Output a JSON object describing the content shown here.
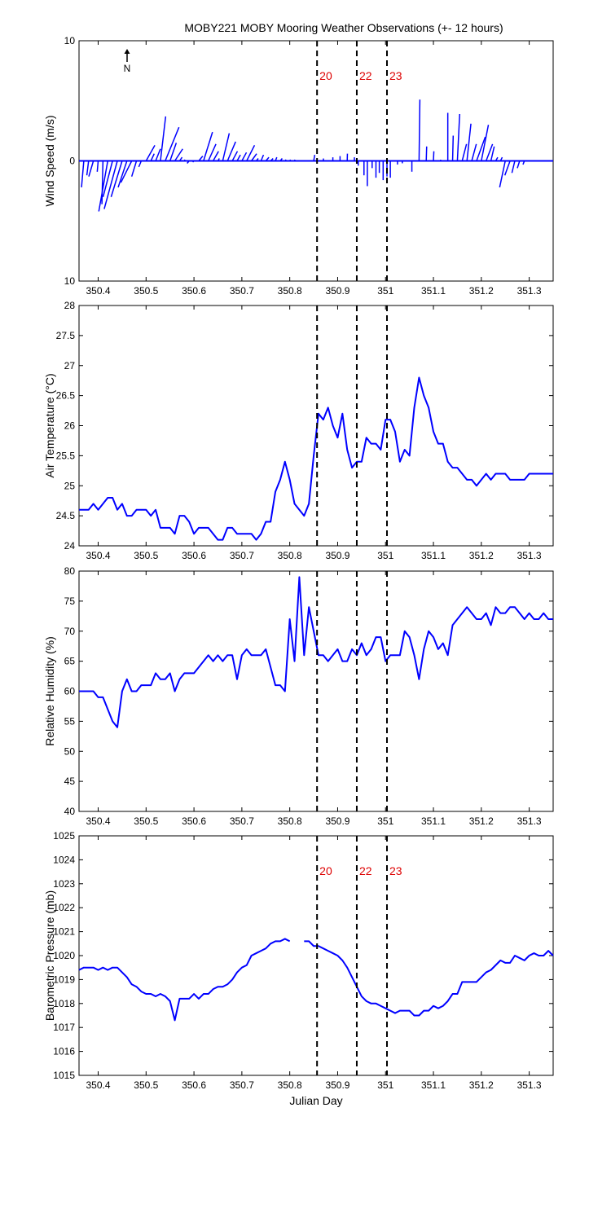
{
  "title": "MOBY221 MOBY Mooring Weather Observations (+- 12 hours)",
  "colors": {
    "series": "#0000ff",
    "marker_label": "#dd0000",
    "axes": "#000000"
  },
  "north_arrow_label": "N",
  "x_axis": {
    "label": "Julian Day",
    "range": [
      350.36,
      351.35
    ],
    "ticks": [
      350.4,
      350.5,
      350.6,
      350.7,
      350.8,
      350.9,
      351,
      351.1,
      351.2,
      351.3
    ],
    "tick_labels": [
      "350.4",
      "350.5",
      "350.6",
      "350.7",
      "350.8",
      "350.9",
      "351",
      "351.1",
      "351.2",
      "351.3"
    ]
  },
  "chart_data": [
    {
      "type": "quiver",
      "ylabel": "Wind Speed (m/s)",
      "ylim": [
        -10,
        10
      ],
      "yticks": [
        10,
        0,
        -10
      ],
      "ytick_labels": [
        "10",
        "0",
        "10"
      ],
      "markers": [
        {
          "x": 350.857,
          "label": "20"
        },
        {
          "x": 350.94,
          "label": "22"
        },
        {
          "x": 351.003,
          "label": "23"
        }
      ],
      "vectors": [
        {
          "x": 350.37,
          "u": -0.0048,
          "v": -2.2
        },
        {
          "x": 350.38,
          "u": -0.0037,
          "v": -1.2
        },
        {
          "x": 350.39,
          "u": -0.0096,
          "v": -1.3
        },
        {
          "x": 350.4,
          "u": -0.002,
          "v": -0.9
        },
        {
          "x": 350.41,
          "u": -0.0022,
          "v": -3.6
        },
        {
          "x": 350.42,
          "u": -0.0187,
          "v": -4.2
        },
        {
          "x": 350.43,
          "u": -0.0198,
          "v": -3.0
        },
        {
          "x": 350.44,
          "u": -0.0274,
          "v": -4.0
        },
        {
          "x": 350.45,
          "u": -0.023,
          "v": -3.0
        },
        {
          "x": 350.46,
          "u": -0.0183,
          "v": -2.2
        },
        {
          "x": 350.47,
          "u": -0.0226,
          "v": -1.8
        },
        {
          "x": 350.48,
          "u": -0.01,
          "v": -1.3
        },
        {
          "x": 350.49,
          "u": -0.0052,
          "v": -0.5
        },
        {
          "x": 350.5,
          "u": 0.0183,
          "v": 1.3
        },
        {
          "x": 350.51,
          "u": 0.007,
          "v": 0.6
        },
        {
          "x": 350.52,
          "u": 0.01,
          "v": 1.0
        },
        {
          "x": 350.53,
          "u": 0.0109,
          "v": 3.7
        },
        {
          "x": 350.54,
          "u": 0.0287,
          "v": 2.8
        },
        {
          "x": 350.55,
          "u": 0.0131,
          "v": 1.5
        },
        {
          "x": 350.56,
          "u": 0.0165,
          "v": 1.0
        },
        {
          "x": 350.57,
          "u": 0.0052,
          "v": 0.3
        },
        {
          "x": 350.58,
          "u": 0.0013,
          "v": 0.1
        },
        {
          "x": 350.59,
          "u": -0.0043,
          "v": -0.2
        },
        {
          "x": 350.6,
          "u": -0.0026,
          "v": -0.1
        },
        {
          "x": 350.61,
          "u": 0.0083,
          "v": 0.4
        },
        {
          "x": 350.62,
          "u": 0.0187,
          "v": 2.4
        },
        {
          "x": 350.63,
          "u": 0.0159,
          "v": 1.4
        },
        {
          "x": 350.64,
          "u": 0.0113,
          "v": 0.8
        },
        {
          "x": 350.65,
          "u": 0.003,
          "v": 0.2
        },
        {
          "x": 350.66,
          "u": 0.0137,
          "v": 2.3
        },
        {
          "x": 350.67,
          "u": 0.017,
          "v": 1.6
        },
        {
          "x": 350.68,
          "u": 0.0108,
          "v": 0.8
        },
        {
          "x": 350.69,
          "u": 0.007,
          "v": 0.5
        },
        {
          "x": 350.7,
          "u": 0.0096,
          "v": 0.7
        },
        {
          "x": 350.71,
          "u": 0.0165,
          "v": 1.3
        },
        {
          "x": 350.72,
          "u": 0.0109,
          "v": 0.6
        },
        {
          "x": 350.73,
          "u": 0.0043,
          "v": 0.2
        },
        {
          "x": 350.74,
          "u": 0.0052,
          "v": 0.5
        },
        {
          "x": 350.75,
          "u": 0.0065,
          "v": 0.3
        },
        {
          "x": 350.76,
          "u": 0.0052,
          "v": 0.2
        },
        {
          "x": 350.77,
          "u": 0.003,
          "v": 0.3
        },
        {
          "x": 350.78,
          "u": 0.0043,
          "v": 0.2
        },
        {
          "x": 350.79,
          "u": 0.0026,
          "v": 0.1
        },
        {
          "x": 350.8,
          "u": 0.0017,
          "v": 0.1
        },
        {
          "x": 350.81,
          "u": 0.0009,
          "v": 0.1
        },
        {
          "x": 350.85,
          "u": 0.0022,
          "v": 0.5
        },
        {
          "x": 350.87,
          "u": 0.0004,
          "v": 0.2
        },
        {
          "x": 350.89,
          "u": 0.0,
          "v": 0.3
        },
        {
          "x": 350.905,
          "u": 0.0,
          "v": 0.4
        },
        {
          "x": 350.92,
          "u": 0.0004,
          "v": 0.6
        },
        {
          "x": 350.935,
          "u": 0.0,
          "v": 0.3
        },
        {
          "x": 350.943,
          "u": 0.0,
          "v": -0.4
        },
        {
          "x": 350.955,
          "u": 0.0,
          "v": -1.2
        },
        {
          "x": 350.962,
          "u": 0.0,
          "v": -2.1
        },
        {
          "x": 350.972,
          "u": 0.0,
          "v": -0.6
        },
        {
          "x": 350.98,
          "u": 0.0,
          "v": -1.4
        },
        {
          "x": 350.987,
          "u": 0.0,
          "v": -1.0
        },
        {
          "x": 350.995,
          "u": 0.0,
          "v": -1.6
        },
        {
          "x": 351.003,
          "u": 0.0,
          "v": -1.3
        },
        {
          "x": 351.01,
          "u": 0.0,
          "v": -1.4
        },
        {
          "x": 351.025,
          "u": 0.0,
          "v": -0.3
        },
        {
          "x": 351.035,
          "u": 0.0,
          "v": -0.2
        },
        {
          "x": 351.055,
          "u": 0.0,
          "v": -0.9
        },
        {
          "x": 351.07,
          "u": 0.0017,
          "v": 5.1
        },
        {
          "x": 351.085,
          "u": 0.0009,
          "v": 1.2
        },
        {
          "x": 351.1,
          "u": 0.0009,
          "v": 0.8
        },
        {
          "x": 351.115,
          "u": 0.0,
          "v": 0.1
        },
        {
          "x": 351.13,
          "u": 0.0,
          "v": 4.0
        },
        {
          "x": 351.14,
          "u": 0.0013,
          "v": 2.1
        },
        {
          "x": 351.15,
          "u": 0.0048,
          "v": 3.9
        },
        {
          "x": 351.16,
          "u": 0.0091,
          "v": 1.4
        },
        {
          "x": 351.17,
          "u": 0.0083,
          "v": 3.1
        },
        {
          "x": 351.18,
          "u": 0.0096,
          "v": 1.4
        },
        {
          "x": 351.19,
          "u": 0.0183,
          "v": 2.0
        },
        {
          "x": 351.2,
          "u": 0.0148,
          "v": 3.0
        },
        {
          "x": 351.21,
          "u": 0.0135,
          "v": 1.4
        },
        {
          "x": 351.22,
          "u": 0.007,
          "v": 1.2
        },
        {
          "x": 351.23,
          "u": 0.0043,
          "v": 0.3
        },
        {
          "x": 351.24,
          "u": 0.0037,
          "v": 0.3
        },
        {
          "x": 351.25,
          "u": -0.0117,
          "v": -2.2
        },
        {
          "x": 351.26,
          "u": -0.0109,
          "v": -1.2
        },
        {
          "x": 351.27,
          "u": -0.0061,
          "v": -1.0
        },
        {
          "x": 351.28,
          "u": -0.0048,
          "v": -0.6
        },
        {
          "x": 351.29,
          "u": -0.003,
          "v": -0.3
        }
      ]
    },
    {
      "type": "line",
      "ylabel": "Air Temperature (°C)",
      "ylim": [
        24,
        28
      ],
      "yticks": [
        24,
        24.5,
        25,
        25.5,
        26,
        26.5,
        27,
        27.5,
        28
      ],
      "ytick_labels": [
        "24",
        "24.5",
        "25",
        "25.5",
        "26",
        "26.5",
        "27",
        "27.5",
        "28"
      ],
      "markers": [
        {
          "x": 350.857
        },
        {
          "x": 350.94
        },
        {
          "x": 351.003
        }
      ],
      "x": [
        350.36,
        350.37,
        350.38,
        350.39,
        350.4,
        350.41,
        350.42,
        350.43,
        350.44,
        350.45,
        350.46,
        350.47,
        350.48,
        350.49,
        350.5,
        350.51,
        350.52,
        350.53,
        350.54,
        350.55,
        350.56,
        350.57,
        350.58,
        350.59,
        350.6,
        350.61,
        350.62,
        350.63,
        350.64,
        350.65,
        350.66,
        350.67,
        350.68,
        350.69,
        350.7,
        350.71,
        350.72,
        350.73,
        350.74,
        350.75,
        350.76,
        350.77,
        350.78,
        350.79,
        350.8,
        350.81,
        350.82,
        350.83,
        350.84,
        350.85,
        350.86,
        350.87,
        350.88,
        350.89,
        350.9,
        350.91,
        350.92,
        350.93,
        350.94,
        350.95,
        350.96,
        350.97,
        350.98,
        350.99,
        351,
        351.01,
        351.02,
        351.03,
        351.04,
        351.05,
        351.06,
        351.07,
        351.08,
        351.09,
        351.1,
        351.11,
        351.12,
        351.13,
        351.14,
        351.15,
        351.16,
        351.17,
        351.18,
        351.19,
        351.2,
        351.21,
        351.22,
        351.23,
        351.24,
        351.25,
        351.26,
        351.27,
        351.28,
        351.29,
        351.3,
        351.31,
        351.32,
        351.33,
        351.34,
        351.35
      ],
      "y": [
        24.6,
        24.6,
        24.6,
        24.7,
        24.6,
        24.7,
        24.8,
        24.8,
        24.6,
        24.7,
        24.5,
        24.5,
        24.6,
        24.6,
        24.6,
        24.5,
        24.6,
        24.3,
        24.3,
        24.3,
        24.2,
        24.5,
        24.5,
        24.4,
        24.2,
        24.3,
        24.3,
        24.3,
        24.2,
        24.1,
        24.1,
        24.3,
        24.3,
        24.2,
        24.2,
        24.2,
        24.2,
        24.1,
        24.2,
        24.4,
        24.4,
        24.9,
        25.1,
        25.4,
        25.1,
        24.7,
        24.6,
        24.5,
        24.7,
        25.5,
        26.2,
        26.1,
        26.3,
        26.0,
        25.8,
        26.2,
        25.6,
        25.3,
        25.4,
        25.4,
        25.8,
        25.7,
        25.7,
        25.6,
        26.1,
        26.1,
        25.9,
        25.4,
        25.6,
        25.5,
        26.3,
        26.8,
        26.5,
        26.3,
        25.9,
        25.7,
        25.7,
        25.4,
        25.3,
        25.3,
        25.2,
        25.1,
        25.1,
        25.0,
        25.1,
        25.2,
        25.1,
        25.2,
        25.2,
        25.2,
        25.1,
        25.1,
        25.1,
        25.1,
        25.2,
        25.2,
        25.2,
        25.2,
        25.2,
        25.2
      ]
    },
    {
      "type": "line",
      "ylabel": "Relative Humidity (%)",
      "ylim": [
        40,
        80
      ],
      "yticks": [
        40,
        45,
        50,
        55,
        60,
        65,
        70,
        75,
        80
      ],
      "ytick_labels": [
        "40",
        "45",
        "50",
        "55",
        "60",
        "65",
        "70",
        "75",
        "80"
      ],
      "markers": [
        {
          "x": 350.857
        },
        {
          "x": 350.94
        },
        {
          "x": 351.003
        }
      ],
      "x": [
        350.36,
        350.37,
        350.38,
        350.39,
        350.4,
        350.41,
        350.42,
        350.43,
        350.44,
        350.45,
        350.46,
        350.47,
        350.48,
        350.49,
        350.5,
        350.51,
        350.52,
        350.53,
        350.54,
        350.55,
        350.56,
        350.57,
        350.58,
        350.59,
        350.6,
        350.61,
        350.62,
        350.63,
        350.64,
        350.65,
        350.66,
        350.67,
        350.68,
        350.69,
        350.7,
        350.71,
        350.72,
        350.73,
        350.74,
        350.75,
        350.76,
        350.77,
        350.78,
        350.79,
        350.8,
        350.81,
        350.82,
        350.83,
        350.84,
        350.85,
        350.86,
        350.87,
        350.88,
        350.89,
        350.9,
        350.91,
        350.92,
        350.93,
        350.94,
        350.95,
        350.96,
        350.97,
        350.98,
        350.99,
        351,
        351.01,
        351.02,
        351.03,
        351.04,
        351.05,
        351.06,
        351.07,
        351.08,
        351.09,
        351.1,
        351.11,
        351.12,
        351.13,
        351.14,
        351.15,
        351.16,
        351.17,
        351.18,
        351.19,
        351.2,
        351.21,
        351.22,
        351.23,
        351.24,
        351.25,
        351.26,
        351.27,
        351.28,
        351.29,
        351.3,
        351.31,
        351.32,
        351.33,
        351.34,
        351.35
      ],
      "y": [
        60,
        60,
        60,
        60,
        59,
        59,
        57,
        55,
        54,
        60,
        62,
        60,
        60,
        61,
        61,
        61,
        63,
        62,
        62,
        63,
        60,
        62,
        63,
        63,
        63,
        64,
        65,
        66,
        65,
        66,
        65,
        66,
        66,
        62,
        66,
        67,
        66,
        66,
        66,
        67,
        64,
        61,
        61,
        60,
        72,
        65,
        79,
        66,
        74,
        70,
        66,
        66,
        65,
        66,
        67,
        65,
        65,
        67,
        66,
        68,
        66,
        67,
        69,
        69,
        65,
        66,
        66,
        66,
        70,
        69,
        66,
        62,
        67,
        70,
        69,
        67,
        68,
        66,
        71,
        72,
        73,
        74,
        73,
        72,
        72,
        73,
        71,
        74,
        73,
        73,
        74,
        74,
        73,
        72,
        73,
        72,
        72,
        73,
        72,
        72
      ]
    },
    {
      "type": "line",
      "ylabel": "Barometric Pressure (mb)",
      "xlabel": "Julian Day",
      "ylim": [
        1015,
        1025
      ],
      "yticks": [
        1015,
        1016,
        1017,
        1018,
        1019,
        1020,
        1021,
        1022,
        1023,
        1024,
        1025
      ],
      "ytick_labels": [
        "1015",
        "1016",
        "1017",
        "1018",
        "1019",
        "1020",
        "1021",
        "1022",
        "1023",
        "1024",
        "1025"
      ],
      "markers": [
        {
          "x": 350.857,
          "label": "20"
        },
        {
          "x": 350.94,
          "label": "22"
        },
        {
          "x": 351.003,
          "label": "23"
        }
      ],
      "gap_after_index": 44,
      "x": [
        350.36,
        350.37,
        350.38,
        350.39,
        350.4,
        350.41,
        350.42,
        350.43,
        350.44,
        350.45,
        350.46,
        350.47,
        350.48,
        350.49,
        350.5,
        350.51,
        350.52,
        350.53,
        350.54,
        350.55,
        350.56,
        350.57,
        350.58,
        350.59,
        350.6,
        350.61,
        350.62,
        350.63,
        350.64,
        350.65,
        350.66,
        350.67,
        350.68,
        350.69,
        350.7,
        350.71,
        350.72,
        350.73,
        350.74,
        350.75,
        350.76,
        350.77,
        350.78,
        350.79,
        350.8,
        350.83,
        350.84,
        350.85,
        350.86,
        350.87,
        350.88,
        350.89,
        350.9,
        350.91,
        350.92,
        350.93,
        350.94,
        350.95,
        350.96,
        350.97,
        350.98,
        350.99,
        351,
        351.01,
        351.02,
        351.03,
        351.04,
        351.05,
        351.06,
        351.07,
        351.08,
        351.09,
        351.1,
        351.11,
        351.12,
        351.13,
        351.14,
        351.15,
        351.16,
        351.17,
        351.18,
        351.19,
        351.2,
        351.21,
        351.22,
        351.23,
        351.24,
        351.25,
        351.26,
        351.27,
        351.28,
        351.29,
        351.3,
        351.31,
        351.32,
        351.33,
        351.34,
        351.35
      ],
      "y": [
        1019.4,
        1019.5,
        1019.5,
        1019.5,
        1019.4,
        1019.5,
        1019.4,
        1019.5,
        1019.5,
        1019.3,
        1019.1,
        1018.8,
        1018.7,
        1018.5,
        1018.4,
        1018.4,
        1018.3,
        1018.4,
        1018.3,
        1018.1,
        1017.3,
        1018.2,
        1018.2,
        1018.2,
        1018.4,
        1018.2,
        1018.4,
        1018.4,
        1018.6,
        1018.7,
        1018.7,
        1018.8,
        1019.0,
        1019.3,
        1019.5,
        1019.6,
        1020.0,
        1020.1,
        1020.2,
        1020.3,
        1020.5,
        1020.6,
        1020.6,
        1020.7,
        1020.6,
        1020.6,
        1020.6,
        1020.4,
        1020.4,
        1020.3,
        1020.2,
        1020.1,
        1020.0,
        1019.8,
        1019.5,
        1019.1,
        1018.7,
        1018.3,
        1018.1,
        1018.0,
        1018.0,
        1017.9,
        1017.8,
        1017.7,
        1017.6,
        1017.7,
        1017.7,
        1017.7,
        1017.5,
        1017.5,
        1017.7,
        1017.7,
        1017.9,
        1017.8,
        1017.9,
        1018.1,
        1018.4,
        1018.4,
        1018.9,
        1018.9,
        1018.9,
        1018.9,
        1019.1,
        1019.3,
        1019.4,
        1019.6,
        1019.8,
        1019.7,
        1019.7,
        1020.0,
        1019.9,
        1019.8,
        1020.0,
        1020.1,
        1020.0,
        1020.0,
        1020.2,
        1020.0
      ]
    }
  ]
}
